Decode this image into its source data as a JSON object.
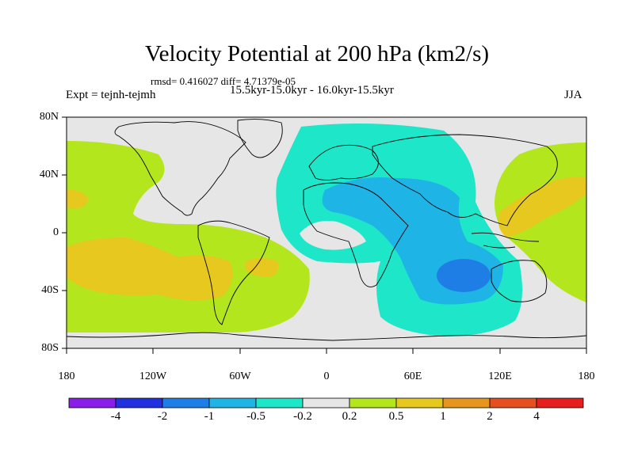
{
  "title": "Velocity Potential at 200 hPa (km2/s)",
  "stats": "rmsd= 0.416027 diff= 4.71379e-05",
  "expt": "Expt = tejnh-tejmh",
  "period": "15.5kyr-15.0kyr - 16.0kyr-15.5kyr",
  "season": "JJA",
  "lat_labels": [
    "80N",
    "40N",
    "0",
    "40S",
    "80S"
  ],
  "lon_labels": [
    "180",
    "120W",
    "60W",
    "0",
    "60E",
    "120E",
    "180"
  ],
  "colorbar": {
    "labels": [
      "-4",
      "-2",
      "-1",
      "-0.5",
      "-0.2",
      "0.2",
      "0.5",
      "1",
      "2",
      "4"
    ],
    "colors": [
      "#8a1ee6",
      "#2330e0",
      "#1e7ee6",
      "#1eb4e6",
      "#1ee6c8",
      "#e6e6e6",
      "#b4e61e",
      "#e6c81e",
      "#e6961e",
      "#e6501e",
      "#e61e1e"
    ]
  },
  "fills": {
    "background": "#e6e6e6",
    "neg_weak": "#1ee6c8",
    "neg_mid": "#1eb4e6",
    "neg_strong": "#1e7ee6",
    "pos_weak": "#b4e61e",
    "pos_mid": "#e6c81e"
  }
}
